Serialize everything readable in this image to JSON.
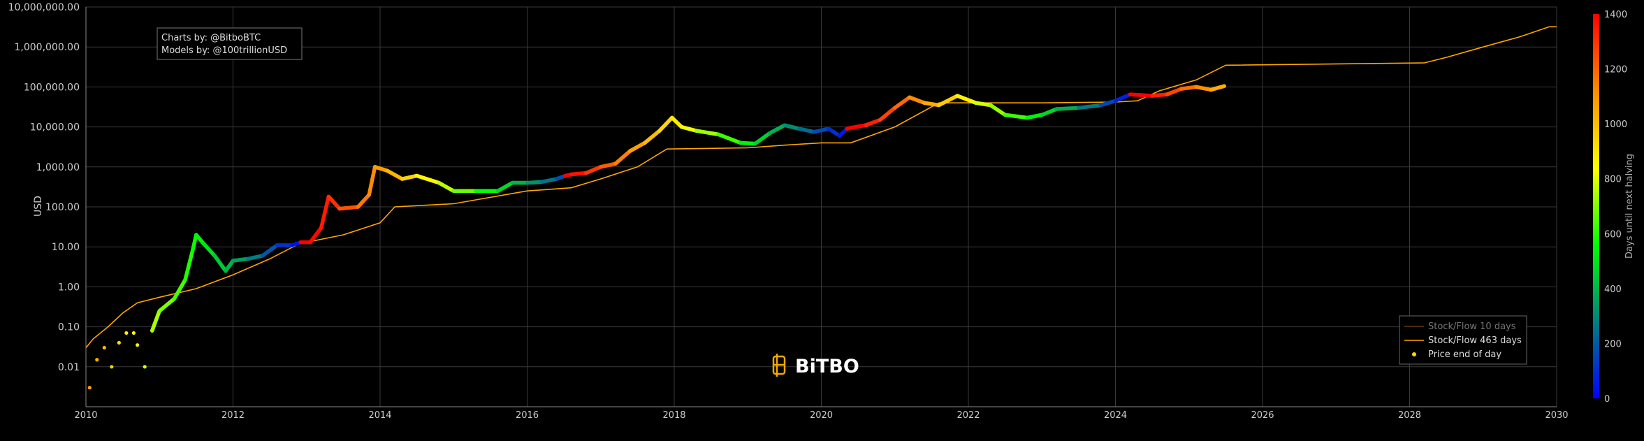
{
  "credits": {
    "charts_by": "Charts by: @BitboBTC",
    "models_by": "Models by: @100trillionUSD"
  },
  "watermark": {
    "text": "BiTBO"
  },
  "colorbar": {
    "title": "Days until next halving",
    "ticks": [
      "0",
      "200",
      "400",
      "600",
      "800",
      "1000",
      "1200",
      "1400"
    ],
    "range": [
      0,
      1400
    ],
    "colors": [
      "#0000ff",
      "#008080",
      "#00ff00",
      "#ffff00",
      "#ff8c00",
      "#ff0000"
    ]
  },
  "legend": {
    "items": [
      {
        "label": "Stock/Flow 10 days",
        "color": "#c77d19",
        "dimmed": true,
        "kind": "line"
      },
      {
        "label": "Stock/Flow 463 days",
        "color": "#ffa500",
        "dimmed": false,
        "kind": "line"
      },
      {
        "label": "Price end of day",
        "color": "#ffd700",
        "dimmed": false,
        "kind": "dot"
      }
    ]
  },
  "chart_data": {
    "type": "scatter",
    "title": "",
    "xlabel": "",
    "ylabel": "USD",
    "y_scale": "log",
    "xlim": [
      2010,
      2030
    ],
    "ylim": [
      0.001,
      10000000
    ],
    "x_ticks": [
      "2010",
      "2012",
      "2014",
      "2016",
      "2018",
      "2020",
      "2022",
      "2024",
      "2026",
      "2028",
      "2030"
    ],
    "y_ticks": [
      "0.01",
      "0.10",
      "1.00",
      "10.00",
      "100.00",
      "1,000.00",
      "10,000.00",
      "100,000.00",
      "1,000,000.00",
      "10,000,000.00"
    ],
    "grid": true,
    "legend_position": "bottom-right",
    "series": [
      {
        "name": "Stock/Flow 463 days",
        "kind": "line",
        "points": [
          [
            2010.0,
            0.03
          ],
          [
            2010.1,
            0.05
          ],
          [
            2010.3,
            0.1
          ],
          [
            2010.5,
            0.22
          ],
          [
            2010.7,
            0.4
          ],
          [
            2011.0,
            0.55
          ],
          [
            2011.5,
            0.9
          ],
          [
            2012.0,
            2
          ],
          [
            2012.5,
            5
          ],
          [
            2012.9,
            12
          ],
          [
            2013.5,
            20
          ],
          [
            2014.0,
            40
          ],
          [
            2014.2,
            100
          ],
          [
            2015.0,
            120
          ],
          [
            2016.0,
            250
          ],
          [
            2016.6,
            300
          ],
          [
            2017.0,
            500
          ],
          [
            2017.5,
            1000
          ],
          [
            2017.9,
            2800
          ],
          [
            2019.0,
            3000
          ],
          [
            2019.5,
            3500
          ],
          [
            2020.0,
            4000
          ],
          [
            2020.4,
            4000
          ],
          [
            2021.0,
            10000
          ],
          [
            2021.6,
            40000
          ],
          [
            2022.0,
            40000
          ],
          [
            2023.0,
            40000
          ],
          [
            2024.0,
            42000
          ],
          [
            2024.3,
            45000
          ],
          [
            2024.6,
            80000
          ],
          [
            2025.1,
            150000
          ],
          [
            2025.5,
            350000
          ],
          [
            2028.2,
            400000
          ],
          [
            2028.5,
            550000
          ],
          [
            2029.0,
            1000000
          ],
          [
            2029.5,
            1800000
          ],
          [
            2029.9,
            3200000
          ],
          [
            2030.0,
            3200000
          ]
        ]
      },
      {
        "name": "Price end of day",
        "kind": "dots",
        "points": [
          [
            2010.05,
            0.003,
            1060
          ],
          [
            2010.15,
            0.015,
            1030
          ],
          [
            2010.25,
            0.03,
            1000
          ],
          [
            2010.35,
            0.01,
            960
          ],
          [
            2010.45,
            0.04,
            920
          ],
          [
            2010.55,
            0.07,
            880
          ],
          [
            2010.65,
            0.07,
            850
          ],
          [
            2010.7,
            0.035,
            830
          ],
          [
            2010.8,
            0.01,
            800
          ],
          [
            2010.9,
            0.08,
            760
          ],
          [
            2011.0,
            0.25,
            730
          ],
          [
            2011.2,
            0.5,
            660
          ],
          [
            2011.35,
            1.5,
            610
          ],
          [
            2011.45,
            8,
            580
          ],
          [
            2011.5,
            20,
            560
          ],
          [
            2011.6,
            12,
            530
          ],
          [
            2011.75,
            6,
            470
          ],
          [
            2011.9,
            2.5,
            420
          ],
          [
            2012.0,
            4.5,
            380
          ],
          [
            2012.2,
            5,
            320
          ],
          [
            2012.4,
            6,
            230
          ],
          [
            2012.6,
            11,
            150
          ],
          [
            2012.8,
            11,
            70
          ],
          [
            2012.92,
            13,
            10
          ],
          [
            2013.05,
            13,
            1410
          ],
          [
            2013.2,
            30,
            1360
          ],
          [
            2013.3,
            180,
            1330
          ],
          [
            2013.45,
            90,
            1280
          ],
          [
            2013.7,
            100,
            1190
          ],
          [
            2013.85,
            200,
            1140
          ],
          [
            2013.93,
            1000,
            1100
          ],
          [
            2014.1,
            800,
            1060
          ],
          [
            2014.3,
            500,
            980
          ],
          [
            2014.5,
            600,
            910
          ],
          [
            2014.8,
            400,
            800
          ],
          [
            2015.0,
            250,
            730
          ],
          [
            2015.3,
            250,
            620
          ],
          [
            2015.6,
            250,
            510
          ],
          [
            2015.8,
            400,
            440
          ],
          [
            2016.0,
            400,
            360
          ],
          [
            2016.2,
            420,
            290
          ],
          [
            2016.4,
            500,
            220
          ],
          [
            2016.52,
            600,
            120
          ],
          [
            2016.6,
            650,
            1400
          ],
          [
            2016.8,
            700,
            1330
          ],
          [
            2017.0,
            1000,
            1250
          ],
          [
            2017.2,
            1200,
            1180
          ],
          [
            2017.4,
            2500,
            1110
          ],
          [
            2017.6,
            4000,
            1040
          ],
          [
            2017.8,
            8000,
            970
          ],
          [
            2017.97,
            17000,
            910
          ],
          [
            2018.1,
            10000,
            860
          ],
          [
            2018.3,
            8000,
            790
          ],
          [
            2018.6,
            6500,
            680
          ],
          [
            2018.9,
            4000,
            570
          ],
          [
            2019.1,
            3800,
            500
          ],
          [
            2019.3,
            7000,
            420
          ],
          [
            2019.5,
            11000,
            350
          ],
          [
            2019.7,
            9000,
            280
          ],
          [
            2019.9,
            7500,
            200
          ],
          [
            2020.1,
            9000,
            130
          ],
          [
            2020.25,
            6000,
            80
          ],
          [
            2020.35,
            9000,
            30
          ],
          [
            2020.4,
            9500,
            1440
          ],
          [
            2020.6,
            11000,
            1370
          ],
          [
            2020.8,
            15000,
            1300
          ],
          [
            2021.0,
            30000,
            1230
          ],
          [
            2021.2,
            55000,
            1160
          ],
          [
            2021.4,
            40000,
            1080
          ],
          [
            2021.6,
            35000,
            1010
          ],
          [
            2021.85,
            60000,
            920
          ],
          [
            2022.1,
            40000,
            830
          ],
          [
            2022.3,
            35000,
            760
          ],
          [
            2022.5,
            20000,
            680
          ],
          [
            2022.8,
            17000,
            570
          ],
          [
            2023.0,
            20000,
            510
          ],
          [
            2023.2,
            28000,
            430
          ],
          [
            2023.5,
            30000,
            330
          ],
          [
            2023.8,
            35000,
            210
          ],
          [
            2024.0,
            45000,
            110
          ],
          [
            2024.2,
            65000,
            40
          ],
          [
            2024.32,
            63000,
            1440
          ],
          [
            2024.5,
            60000,
            1370
          ],
          [
            2024.7,
            65000,
            1300
          ],
          [
            2024.9,
            90000,
            1220
          ],
          [
            2025.1,
            100000,
            1150
          ],
          [
            2025.3,
            85000,
            1080
          ],
          [
            2025.48,
            105000,
            1010
          ]
        ]
      }
    ]
  }
}
